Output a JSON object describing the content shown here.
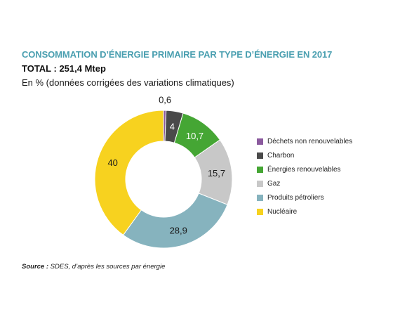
{
  "header": {
    "title": "CONSOMMATION D’ÉNERGIE PRIMAIRE PAR TYPE D’ÉNERGIE EN 2017",
    "total": "TOTAL : 251,4 Mtep",
    "subtitle": "En % (données corrigées des variations climatiques)"
  },
  "footer": {
    "source_label": "Source :",
    "source_text": " SDES, d’après les sources par énergie"
  },
  "chart_data": {
    "type": "pie",
    "donut": true,
    "unit": "%",
    "legend_position": "right",
    "categories": [
      "Déchets non renouvelables",
      "Charbon",
      "Énergies renouvelables",
      "Gaz",
      "Produits pétroliers",
      "Nucléaire"
    ],
    "values": [
      0.6,
      4,
      10.7,
      15.7,
      28.9,
      40
    ],
    "value_labels": [
      "0,6",
      "4",
      "10,7",
      "15,7",
      "28,9",
      "40"
    ],
    "colors": [
      "#8b5a9e",
      "#4a4a4a",
      "#45a634",
      "#c8c8c8",
      "#86b3be",
      "#f7d21f"
    ]
  }
}
